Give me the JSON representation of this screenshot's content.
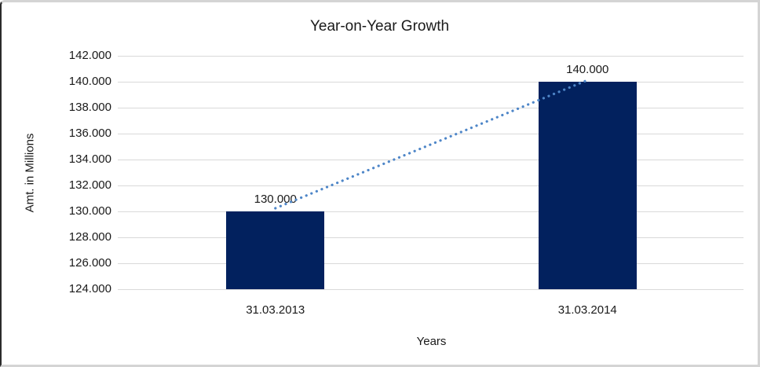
{
  "frame": {
    "background": "#ffffff",
    "border_color": "#d4d4d4",
    "left_edge_color": "#2b2b2b"
  },
  "chart_data": {
    "type": "bar",
    "title": "Year-on-Year Growth",
    "xlabel": "Years",
    "ylabel": "Amt. in Millions",
    "categories": [
      "31.03.2013",
      "31.03.2014"
    ],
    "values": [
      130000,
      140000
    ],
    "value_labels": [
      "130.000",
      "140.000"
    ],
    "ylim": [
      124000,
      142000
    ],
    "ytick_values": [
      124000,
      126000,
      128000,
      130000,
      132000,
      134000,
      136000,
      138000,
      140000,
      142000
    ],
    "ytick_labels": [
      "124.000",
      "126.000",
      "128.000",
      "130.000",
      "132.000",
      "134.000",
      "136.000",
      "138.000",
      "140.000",
      "142.000"
    ],
    "grid": true,
    "legend": "none",
    "bar_color": "#02215e",
    "gridline_color": "#d9d9d9",
    "text_color": "#1a1a1a",
    "trendline": {
      "style": "dotted",
      "color": "#4e86c8",
      "connects": [
        "31.03.2013",
        "31.03.2014"
      ]
    }
  }
}
